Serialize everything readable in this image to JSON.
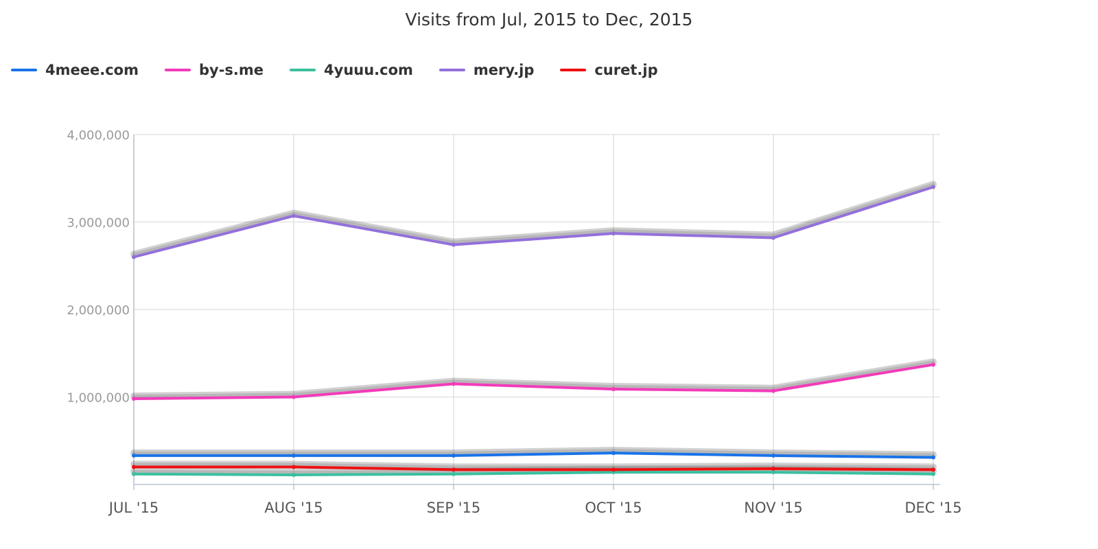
{
  "chart_data": {
    "type": "line",
    "title": "Visits from Jul, 2015 to Dec, 2015",
    "xlabel": "",
    "ylabel": "",
    "categories": [
      "JUL '15",
      "AUG '15",
      "SEP '15",
      "OCT '15",
      "NOV '15",
      "DEC '15"
    ],
    "ylim": [
      0,
      4000000
    ],
    "yticks": [
      1000000,
      2000000,
      3000000,
      4000000
    ],
    "ytick_labels": [
      "1,000,000",
      "2,000,000",
      "3,000,000",
      "4,000,000"
    ],
    "grid": true,
    "legend_position": "top-left",
    "series": [
      {
        "name": "4meee.com",
        "color": "#1a73e8",
        "values": [
          330000,
          330000,
          330000,
          360000,
          330000,
          310000
        ]
      },
      {
        "name": "by-s.me",
        "color": "#f23bb9",
        "values": [
          980000,
          1000000,
          1150000,
          1090000,
          1070000,
          1370000
        ]
      },
      {
        "name": "4yuuu.com",
        "color": "#3bbf9f",
        "values": [
          120000,
          110000,
          120000,
          140000,
          140000,
          120000
        ]
      },
      {
        "name": "mery.jp",
        "color": "#9370db",
        "values": [
          2600000,
          3070000,
          2740000,
          2870000,
          2820000,
          3400000
        ]
      },
      {
        "name": "curet.jp",
        "color": "#ee1111",
        "values": [
          200000,
          200000,
          170000,
          170000,
          180000,
          170000
        ]
      }
    ]
  }
}
